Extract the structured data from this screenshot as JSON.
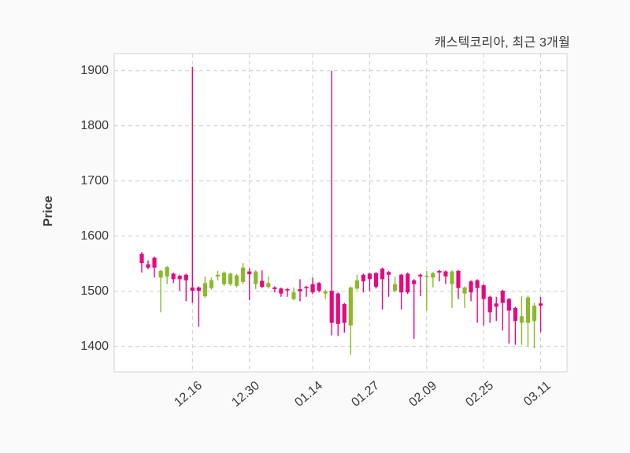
{
  "page": {
    "background": "#fafafa"
  },
  "chart_data": {
    "type": "candlestick",
    "title": "캐스텍코리아, 최근 3개월",
    "ylabel": "Price",
    "xlabel": "",
    "ylim": [
      1354,
      1931
    ],
    "y_ticks": [
      1400,
      1500,
      1600,
      1700,
      1800,
      1900
    ],
    "x_tick_labels": [
      "12.16",
      "12.30",
      "01.14",
      "01.27",
      "02.09",
      "02.25",
      "03.11"
    ],
    "x_tick_indices": [
      8,
      17,
      27,
      36,
      45,
      54,
      63
    ],
    "grid": "dashed-both-axes",
    "legend": "none",
    "colors": {
      "up": "#8CB92C",
      "down": "#E5097F",
      "grid": "#CCCCCC",
      "border": "#D8D8D8",
      "text": "#3A3A3A",
      "plot_bg": "#FFFFFF"
    },
    "candle_columns": [
      "open",
      "high",
      "low",
      "close"
    ],
    "candles": [
      [
        1568,
        1571,
        1534,
        1551
      ],
      [
        1549,
        1556,
        1540,
        1543
      ],
      [
        1561,
        1563,
        1525,
        1543
      ],
      [
        1525,
        1539,
        1462,
        1537
      ],
      [
        1527,
        1546,
        1513,
        1544
      ],
      [
        1532,
        1534,
        1515,
        1522
      ],
      [
        1528,
        1530,
        1501,
        1522
      ],
      [
        1530,
        1532,
        1482,
        1520
      ],
      [
        1507,
        1907,
        1479,
        1501
      ],
      [
        1507,
        1509,
        1436,
        1501
      ],
      [
        1491,
        1527,
        1488,
        1515
      ],
      [
        1506,
        1525,
        1503,
        1520
      ],
      [
        1527,
        1537,
        1520,
        1530
      ],
      [
        1513,
        1536,
        1510,
        1534
      ],
      [
        1513,
        1534,
        1510,
        1532
      ],
      [
        1510,
        1531,
        1507,
        1529
      ],
      [
        1517,
        1551,
        1513,
        1543
      ],
      [
        1536,
        1542,
        1484,
        1531
      ],
      [
        1513,
        1538,
        1504,
        1536
      ],
      [
        1519,
        1538,
        1506,
        1508
      ],
      [
        1508,
        1527,
        1505,
        1515
      ],
      [
        1507,
        1509,
        1498,
        1504
      ],
      [
        1505,
        1507,
        1490,
        1496
      ],
      [
        1504,
        1506,
        1490,
        1502
      ],
      [
        1486,
        1507,
        1484,
        1498
      ],
      [
        1504,
        1522,
        1482,
        1500
      ],
      [
        1508,
        1510,
        1490,
        1506
      ],
      [
        1513,
        1525,
        1495,
        1498
      ],
      [
        1515,
        1517,
        1498,
        1501
      ],
      [
        1496,
        1503,
        1486,
        1500
      ],
      [
        1501,
        1900,
        1420,
        1443
      ],
      [
        1496,
        1498,
        1419,
        1441
      ],
      [
        1477,
        1479,
        1425,
        1443
      ],
      [
        1438,
        1509,
        1385,
        1507
      ],
      [
        1505,
        1530,
        1502,
        1520
      ],
      [
        1530,
        1532,
        1498,
        1518
      ],
      [
        1532,
        1534,
        1500,
        1522
      ],
      [
        1533,
        1535,
        1505,
        1508
      ],
      [
        1541,
        1543,
        1467,
        1522
      ],
      [
        1535,
        1537,
        1490,
        1530
      ],
      [
        1501,
        1527,
        1498,
        1513
      ],
      [
        1530,
        1532,
        1467,
        1498
      ],
      [
        1532,
        1534,
        1495,
        1498
      ],
      [
        1520,
        1522,
        1414,
        1513
      ],
      [
        1530,
        1532,
        1491,
        1527
      ],
      [
        1526,
        1537,
        1465,
        1528
      ],
      [
        1525,
        1535,
        1507,
        1533
      ],
      [
        1537,
        1539,
        1518,
        1534
      ],
      [
        1536,
        1538,
        1513,
        1527
      ],
      [
        1513,
        1538,
        1470,
        1536
      ],
      [
        1537,
        1539,
        1486,
        1506
      ],
      [
        1496,
        1509,
        1470,
        1507
      ],
      [
        1518,
        1520,
        1482,
        1498
      ],
      [
        1520,
        1522,
        1443,
        1506
      ],
      [
        1511,
        1513,
        1438,
        1486
      ],
      [
        1490,
        1492,
        1443,
        1462
      ],
      [
        1478,
        1490,
        1446,
        1472
      ],
      [
        1501,
        1503,
        1429,
        1479
      ],
      [
        1486,
        1488,
        1405,
        1465
      ],
      [
        1470,
        1472,
        1403,
        1446
      ],
      [
        1443,
        1491,
        1403,
        1455
      ],
      [
        1443,
        1492,
        1400,
        1489
      ],
      [
        1446,
        1479,
        1397,
        1474
      ],
      [
        1478,
        1490,
        1426,
        1474
      ]
    ]
  }
}
